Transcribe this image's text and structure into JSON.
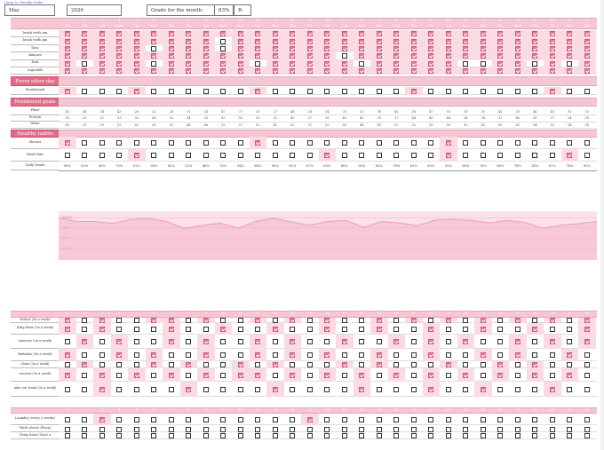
{
  "top_link": "Jump to Weekly tasks",
  "header": {
    "month": "May",
    "year": "2026",
    "grade_label": "Grade for the month:",
    "grade_pct": "83%",
    "grade_letter": "B-"
  },
  "days": {
    "numbers": [
      "1",
      "2",
      "3",
      "4",
      "5",
      "6",
      "7",
      "8",
      "9",
      "10",
      "11",
      "12",
      "13",
      "14",
      "15",
      "16",
      "17",
      "18",
      "19",
      "20",
      "21",
      "22",
      "23",
      "24",
      "25",
      "26",
      "27",
      "28",
      "29",
      "30",
      "31"
    ],
    "weekdays": [
      "Fri",
      "Sat",
      "Sun",
      "Mon",
      "Tue",
      "Wed",
      "Thu",
      "Fri",
      "Sat",
      "Sun",
      "Mon",
      "Tue",
      "Wed",
      "Thu",
      "Fri",
      "Sat",
      "Sun",
      "Mon",
      "Tue",
      "Wed",
      "Thu",
      "Fri",
      "Sat",
      "Sun",
      "Mon",
      "Tue",
      "Wed",
      "Thu",
      "Fri",
      "Sat",
      "Sun"
    ]
  },
  "daily_tasks": {
    "title": "Daily Tasks",
    "rows": [
      {
        "label": "brush teeth am",
        "checks": [
          1,
          1,
          1,
          1,
          1,
          1,
          1,
          1,
          1,
          1,
          1,
          1,
          1,
          1,
          1,
          1,
          1,
          1,
          1,
          1,
          1,
          1,
          1,
          1,
          1,
          1,
          1,
          1,
          1,
          1,
          1
        ]
      },
      {
        "label": "brush teeth pm",
        "checks": [
          1,
          1,
          1,
          1,
          1,
          1,
          1,
          1,
          1,
          0,
          1,
          1,
          1,
          1,
          1,
          1,
          1,
          1,
          1,
          1,
          1,
          1,
          1,
          1,
          1,
          1,
          1,
          1,
          1,
          1,
          1
        ]
      },
      {
        "label": "floss",
        "checks": [
          1,
          1,
          1,
          1,
          1,
          0,
          1,
          1,
          1,
          0,
          1,
          1,
          1,
          1,
          1,
          1,
          1,
          1,
          1,
          1,
          1,
          1,
          1,
          1,
          1,
          1,
          1,
          1,
          1,
          1,
          1
        ]
      },
      {
        "label": "skincare",
        "checks": [
          1,
          1,
          1,
          1,
          1,
          1,
          1,
          1,
          1,
          1,
          1,
          1,
          1,
          1,
          1,
          1,
          0,
          1,
          1,
          1,
          1,
          1,
          1,
          1,
          1,
          1,
          1,
          1,
          1,
          1,
          1
        ]
      },
      {
        "label": "fruit",
        "checks": [
          1,
          0,
          1,
          1,
          1,
          0,
          1,
          1,
          1,
          1,
          1,
          0,
          1,
          1,
          1,
          1,
          1,
          0,
          1,
          1,
          1,
          1,
          1,
          0,
          0,
          1,
          1,
          0,
          1,
          0,
          1
        ]
      },
      {
        "label": "vegetable",
        "checks": [
          1,
          1,
          1,
          1,
          1,
          1,
          1,
          1,
          1,
          1,
          1,
          1,
          1,
          1,
          1,
          1,
          1,
          1,
          1,
          1,
          1,
          1,
          1,
          1,
          1,
          1,
          1,
          1,
          1,
          1,
          1
        ]
      }
    ]
  },
  "every_other_day": {
    "title": "Every other day",
    "rows": [
      {
        "label": "Mouthwash",
        "checks": [
          1,
          0,
          0,
          0,
          1,
          0,
          0,
          0,
          0,
          0,
          0,
          1,
          0,
          0,
          0,
          0,
          0,
          0,
          0,
          0,
          1,
          0,
          0,
          0,
          0,
          0,
          0,
          0,
          1,
          0,
          0
        ]
      }
    ]
  },
  "numbered_goals": {
    "title": "Numbered goals",
    "rows": [
      {
        "label": "Fiber",
        "values": [
          "45",
          "48",
          "34",
          "43",
          "26",
          "32",
          "28",
          "37",
          "34",
          "47",
          "37",
          "29",
          "27",
          "48",
          "28",
          "34",
          "35",
          "31",
          "38",
          "40",
          "38",
          "47",
          "50",
          "39",
          "35",
          "45",
          "35",
          "46",
          "45",
          "50",
          "53"
        ]
      },
      {
        "label": "Protein",
        "values": [
          "55",
          "55",
          "21",
          "53",
          "32",
          "54",
          "32",
          "34",
          "33",
          "55",
          "50",
          "55",
          "31",
          "42",
          "27",
          "35",
          "45",
          "40",
          "39",
          "37",
          "44",
          "40",
          "44",
          "54",
          "28",
          "31",
          "40",
          "28",
          "37",
          "24",
          "50"
        ]
      },
      {
        "label": "Water",
        "values": [
          "69",
          "31",
          "59",
          "53",
          "62",
          "58",
          "31",
          "48",
          "66",
          "52",
          "57",
          "52",
          "41",
          "63",
          "57",
          "53",
          "65",
          "48",
          "49",
          "53",
          "52",
          "55",
          "59",
          "50",
          "45",
          "69",
          "63",
          "54",
          "52",
          "54",
          "58"
        ]
      }
    ]
  },
  "healthy_habits": {
    "title": "Healthy habits",
    "rows": [
      {
        "label": "Shower",
        "checks": [
          1,
          0,
          0,
          0,
          0,
          0,
          0,
          0,
          0,
          0,
          0,
          1,
          0,
          0,
          0,
          0,
          0,
          0,
          0,
          0,
          0,
          0,
          1,
          0,
          0,
          0,
          0,
          0,
          0,
          0,
          0
        ]
      },
      {
        "label": "Wash Hair",
        "checks": [
          0,
          0,
          0,
          0,
          1,
          0,
          0,
          0,
          0,
          0,
          0,
          0,
          0,
          0,
          0,
          1,
          0,
          0,
          0,
          0,
          0,
          0,
          1,
          0,
          0,
          0,
          0,
          0,
          0,
          1,
          0
        ]
      }
    ]
  },
  "daily_grade": {
    "label": "Daily Grade",
    "values": [
      "99%",
      "83%",
      "83%",
      "75%",
      "91%",
      "96%",
      "83%",
      "53%",
      "66%",
      "76%",
      "54%",
      "84%",
      "96%",
      "81%",
      "67%",
      "83%",
      "88%",
      "58%",
      "83%",
      "76%",
      "65%",
      "89%",
      "92%",
      "88%",
      "76%",
      "88%",
      "78%",
      "54%",
      "67%",
      "74%",
      "83%"
    ]
  },
  "chart": {
    "y_labels": [
      "100%",
      "75%",
      "50%",
      "25%"
    ]
  },
  "chart_data": {
    "type": "area",
    "x": [
      "1",
      "2",
      "3",
      "4",
      "5",
      "6",
      "7",
      "8",
      "9",
      "10",
      "11",
      "12",
      "13",
      "14",
      "15",
      "16",
      "17",
      "18",
      "19",
      "20",
      "21",
      "22",
      "23",
      "24",
      "25",
      "26",
      "27",
      "28",
      "29",
      "30",
      "31"
    ],
    "values": [
      99,
      83,
      83,
      75,
      91,
      96,
      83,
      53,
      66,
      76,
      54,
      84,
      96,
      81,
      67,
      83,
      88,
      58,
      83,
      76,
      65,
      89,
      92,
      88,
      76,
      88,
      78,
      54,
      67,
      74,
      83
    ],
    "ylim": [
      0,
      100
    ],
    "color": "#f4b5c5"
  },
  "weekly_tasks": {
    "title": "Weekly tasks",
    "rows": [
      {
        "label": "Dishes (3x a week)",
        "checks": [
          1,
          0,
          1,
          0,
          0,
          1,
          1,
          0,
          1,
          0,
          0,
          1,
          0,
          1,
          0,
          1,
          0,
          0,
          1,
          0,
          1,
          0,
          1,
          0,
          1,
          0,
          1,
          0,
          1,
          0,
          1
        ]
      },
      {
        "label": "Kitty litter (2x a week)",
        "checks": [
          1,
          0,
          1,
          0,
          0,
          0,
          1,
          0,
          0,
          1,
          0,
          0,
          1,
          0,
          0,
          1,
          0,
          0,
          1,
          0,
          0,
          1,
          0,
          0,
          1,
          0,
          0,
          1,
          0,
          0,
          1
        ]
      },
      {
        "label": "exercise (3x a week)",
        "checks": [
          0,
          1,
          0,
          1,
          0,
          0,
          1,
          0,
          1,
          0,
          0,
          1,
          0,
          1,
          0,
          0,
          1,
          0,
          0,
          1,
          0,
          1,
          0,
          1,
          0,
          0,
          1,
          0,
          1,
          0,
          1
        ]
      },
      {
        "label": "Exfoliate (3x a week)",
        "checks": [
          1,
          0,
          0,
          1,
          0,
          1,
          0,
          0,
          1,
          0,
          0,
          1,
          0,
          1,
          0,
          1,
          0,
          0,
          1,
          0,
          0,
          1,
          0,
          0,
          1,
          0,
          1,
          0,
          0,
          1,
          0
        ]
      },
      {
        "label": "clean (3x a week)",
        "checks": [
          0,
          1,
          0,
          0,
          0,
          1,
          0,
          1,
          0,
          0,
          1,
          0,
          1,
          0,
          0,
          0,
          1,
          0,
          1,
          0,
          0,
          0,
          1,
          0,
          0,
          1,
          0,
          1,
          0,
          0,
          0
        ]
      },
      {
        "label": "crochet (3x a week)",
        "checks": [
          1,
          0,
          1,
          0,
          1,
          0,
          1,
          0,
          1,
          0,
          1,
          1,
          0,
          1,
          0,
          1,
          0,
          1,
          0,
          1,
          0,
          1,
          0,
          1,
          0,
          1,
          0,
          1,
          0,
          1,
          0
        ]
      },
      {
        "label": "take out trash (2x a week)",
        "checks": [
          0,
          0,
          1,
          0,
          0,
          0,
          0,
          1,
          0,
          0,
          0,
          0,
          1,
          0,
          0,
          0,
          0,
          1,
          0,
          0,
          0,
          1,
          0,
          0,
          1,
          0,
          0,
          0,
          1,
          0,
          0
        ]
      }
    ]
  },
  "monthly_tasks": {
    "title": "Monthly tasks",
    "rows": [
      {
        "label": "Laundry (every 2 weeks)",
        "checks": [
          0,
          0,
          1,
          0,
          0,
          0,
          0,
          0,
          0,
          0,
          0,
          0,
          0,
          0,
          1,
          0,
          0,
          0,
          0,
          0,
          0,
          0,
          0,
          0,
          0,
          0,
          0,
          0,
          0,
          0,
          0
        ]
      },
      {
        "label": "Wash sheets (Every",
        "checks": [
          0,
          0,
          0,
          0,
          0,
          0,
          0,
          0,
          0,
          0,
          0,
          0,
          0,
          0,
          0,
          0,
          0,
          0,
          0,
          0,
          0,
          0,
          0,
          0,
          0,
          0,
          0,
          0,
          0,
          0,
          0
        ]
      },
      {
        "label": "Deep clean (Once a",
        "checks": [
          0,
          0,
          0,
          0,
          0,
          0,
          0,
          0,
          0,
          0,
          0,
          0,
          0,
          0,
          0,
          0,
          0,
          0,
          0,
          0,
          0,
          0,
          0,
          0,
          0,
          0,
          0,
          0,
          0,
          0,
          0
        ]
      }
    ]
  }
}
